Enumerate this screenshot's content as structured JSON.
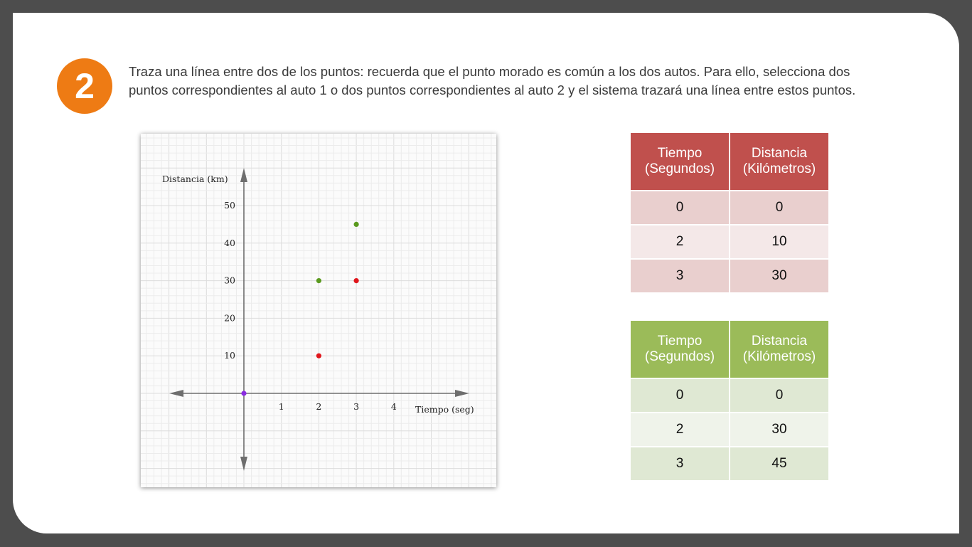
{
  "step": {
    "number": "2",
    "instructions": "Traza una línea entre dos de los puntos: recuerda que el punto morado es común a los dos autos. Para ello, selecciona dos puntos correspondientes al auto 1 o dos puntos correspondientes al auto 2 y el sistema trazará una línea entre estos puntos."
  },
  "chart_data": {
    "type": "scatter",
    "xlabel": "Tiempo (seg)",
    "ylabel": "Distancia (km)",
    "x_ticks": [
      "1",
      "2",
      "3",
      "4"
    ],
    "y_ticks": [
      "10",
      "20",
      "30",
      "40",
      "50"
    ],
    "xlim": [
      -2,
      6
    ],
    "ylim": [
      -20,
      60
    ],
    "grid": true,
    "series": [
      {
        "color": "#8a2be2",
        "points": [
          {
            "x": 0,
            "y": 0
          }
        ]
      },
      {
        "color": "#e0161c",
        "points": [
          {
            "x": 2,
            "y": 10
          },
          {
            "x": 3,
            "y": 30
          }
        ]
      },
      {
        "color": "#5a9a1e",
        "points": [
          {
            "x": 2,
            "y": 30
          },
          {
            "x": 3,
            "y": 45
          }
        ]
      }
    ]
  },
  "tables": {
    "auto1": {
      "color": "#c0504d",
      "headers": [
        "Tiempo\n(Segundos)",
        "Distancia\n(Kilómetros)"
      ],
      "rows": [
        [
          "0",
          "0"
        ],
        [
          "2",
          "10"
        ],
        [
          "3",
          "30"
        ]
      ]
    },
    "auto2": {
      "color": "#9bbb59",
      "headers": [
        "Tiempo\n(Segundos)",
        "Distancia\n(Kilómetros)"
      ],
      "rows": [
        [
          "0",
          "0"
        ],
        [
          "2",
          "30"
        ],
        [
          "3",
          "45"
        ]
      ]
    }
  }
}
